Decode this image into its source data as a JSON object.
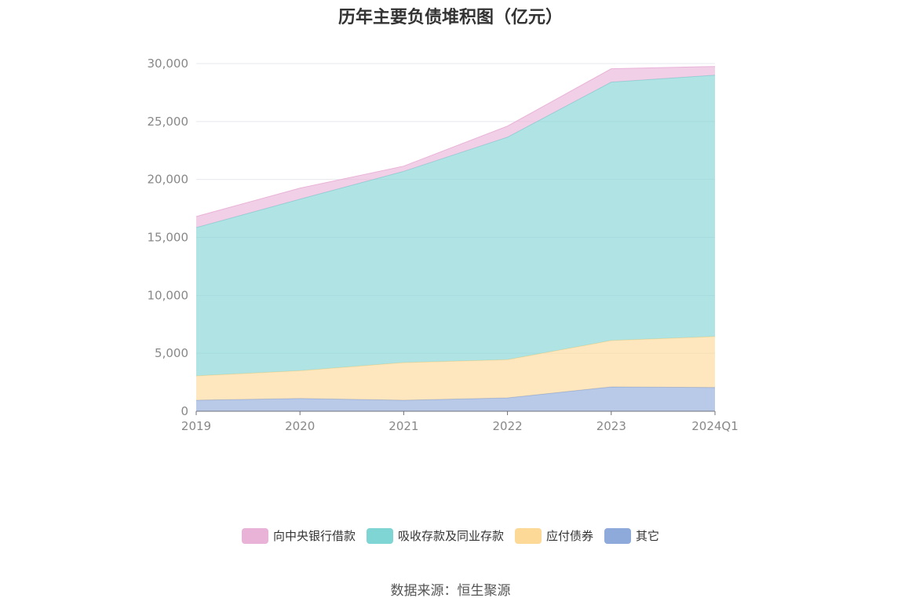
{
  "chart_data": {
    "type": "area",
    "title": "历年主要负债堆积图（亿元）",
    "categories": [
      "2019",
      "2020",
      "2021",
      "2022",
      "2023",
      "2024Q1"
    ],
    "series": [
      {
        "name": "其它",
        "values": [
          950,
          1100,
          950,
          1150,
          2100,
          2050
        ],
        "color": "#8eaadb"
      },
      {
        "name": "应付债券",
        "values": [
          2100,
          2400,
          3250,
          3300,
          4000,
          4400
        ],
        "color": "#fdd997"
      },
      {
        "name": "吸收存款及同业存款",
        "values": [
          12800,
          14800,
          16500,
          19200,
          22300,
          22550
        ],
        "color": "#7fd4d4"
      },
      {
        "name": "向中央银行借款",
        "values": [
          950,
          950,
          450,
          950,
          1150,
          750
        ],
        "color": "#e9b3d8"
      }
    ],
    "yticks": [
      "0",
      "5,000",
      "10,000",
      "15,000",
      "20,000",
      "25,000",
      "30,000"
    ],
    "ylim": [
      0,
      30000
    ],
    "stacked": true,
    "grid": true,
    "legend_position": "bottom",
    "legend_order": [
      "向中央银行借款",
      "吸收存款及同业存款",
      "应付债券",
      "其它"
    ]
  },
  "source": "数据来源：恒生聚源"
}
